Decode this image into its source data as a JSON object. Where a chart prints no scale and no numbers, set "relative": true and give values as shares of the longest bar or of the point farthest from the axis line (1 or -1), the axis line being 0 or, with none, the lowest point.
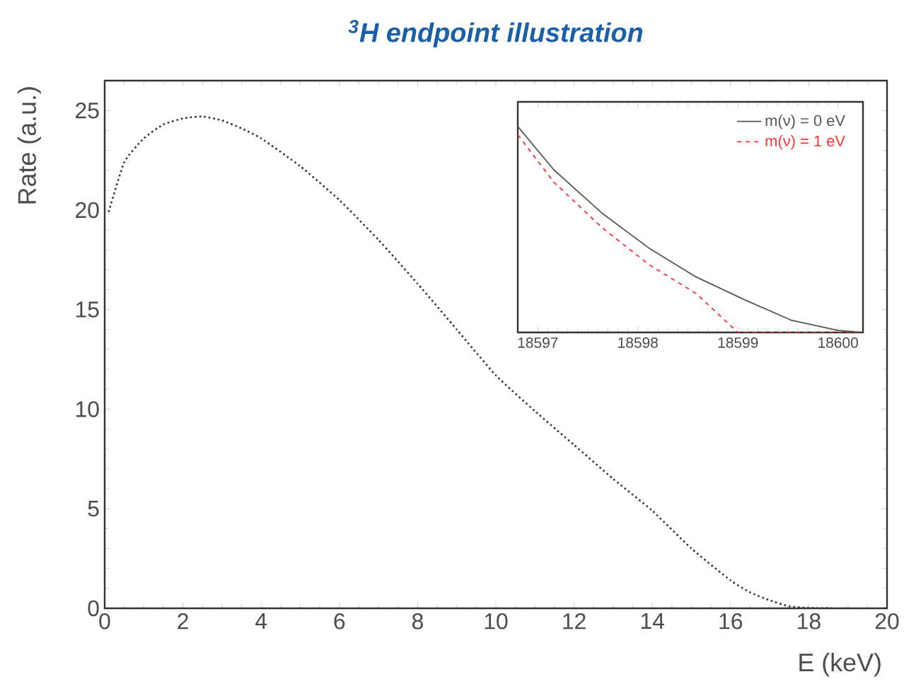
{
  "chart_data": [
    {
      "type": "line",
      "title": "$^{3}$H endpoint illustration",
      "xlabel": "E (keV)",
      "ylabel": "Rate (a.u.)",
      "x": [
        0.1,
        0.5,
        1,
        1.5,
        2,
        2.5,
        3,
        3.5,
        4,
        5,
        6,
        7,
        8,
        9,
        10,
        11,
        12,
        13,
        14,
        15,
        16,
        16.5,
        17,
        17.5,
        18,
        18.6
      ],
      "series": [
        {
          "color": "#333333",
          "values": [
            19.9,
            22.4,
            23.6,
            24.3,
            24.6,
            24.7,
            24.5,
            24.1,
            23.6,
            22.2,
            20.5,
            18.5,
            16.3,
            14.0,
            11.7,
            9.9,
            8.2,
            6.5,
            4.9,
            3.0,
            1.4,
            0.8,
            0.4,
            0.1,
            0.02,
            0
          ]
        }
      ],
      "xlim": [
        0,
        20
      ],
      "ylim": [
        0,
        26.5
      ],
      "xticks": [
        0,
        2,
        4,
        6,
        8,
        10,
        12,
        14,
        16,
        18,
        20
      ],
      "yticks": [
        0,
        5,
        10,
        15,
        20,
        25
      ],
      "line_style": "dotted"
    },
    {
      "type": "line",
      "relative": true,
      "tick_labels": "x",
      "legend": "top right",
      "x": [
        18596.8,
        18597.16,
        18597.64,
        18598.11,
        18598.58,
        18599.06,
        18599.53,
        18600.0,
        18600.24
      ],
      "series": [
        {
          "name": "m(ν) = 0 eV",
          "color": "#555555",
          "line_style": "solid",
          "values": [
            1,
            0.79,
            0.58,
            0.41,
            0.27,
            0.16,
            0.06,
            0.01,
            0
          ]
        },
        {
          "name": "m(ν) = 1 eV",
          "color": "#ff3333",
          "line_style": "dashed",
          "x": [
            18596.8,
            18597.16,
            18597.64,
            18598.11,
            18598.58,
            18599.0,
            18600.24
          ],
          "values": [
            0.96,
            0.73,
            0.51,
            0.33,
            0.19,
            0,
            0
          ]
        }
      ],
      "xlim": [
        18596.8,
        18600.25
      ],
      "xticks": [
        18597,
        18598,
        18599,
        18600
      ]
    }
  ]
}
